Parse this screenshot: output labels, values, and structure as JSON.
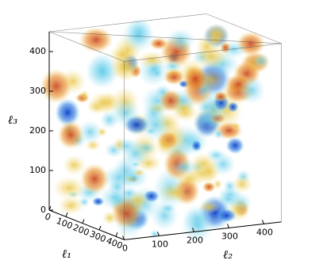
{
  "chart_data": {
    "type": "volume",
    "xlabel": "ℓ₁",
    "ylabel": "ℓ₂",
    "zlabel": "ℓ₃",
    "xlim": [
      0,
      450
    ],
    "ylim": [
      0,
      450
    ],
    "zlim": [
      0,
      450
    ],
    "xticks": [
      0,
      100,
      200,
      300,
      400
    ],
    "yticks": [
      0,
      100,
      200,
      300,
      400
    ],
    "zticks": [
      0,
      100,
      200,
      300,
      400
    ]
  }
}
